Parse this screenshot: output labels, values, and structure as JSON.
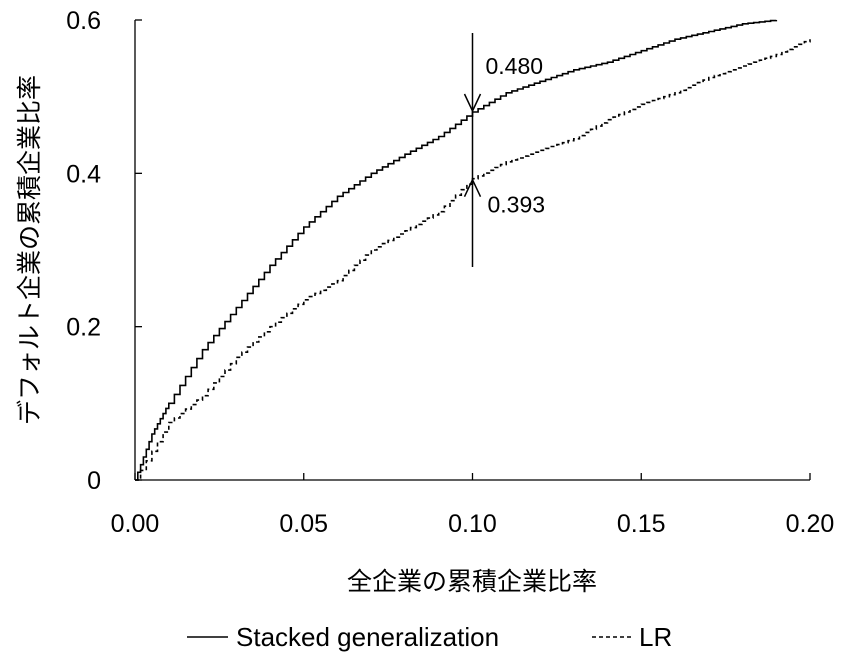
{
  "chart_data": {
    "type": "line",
    "xlabel": "全企業の累積企業比率",
    "ylabel": "デフォルト企業の累積企業比率",
    "xlim": [
      0,
      0.2
    ],
    "ylim": [
      0,
      0.6
    ],
    "x_ticks": [
      "0.00",
      "0.05",
      "0.10",
      "0.15",
      "0.20"
    ],
    "y_ticks": [
      "0",
      "0.2",
      "0.4",
      "0.6"
    ],
    "grid": false,
    "legend_position": "bottom",
    "series": [
      {
        "name": "Stacked generalization",
        "style": "solid",
        "color": "#000000",
        "x": [
          0,
          0.005,
          0.01,
          0.02,
          0.03,
          0.04,
          0.05,
          0.06,
          0.07,
          0.08,
          0.09,
          0.1,
          0.11,
          0.12,
          0.13,
          0.14,
          0.15,
          0.16,
          0.17,
          0.18,
          0.19
        ],
        "y": [
          0,
          0.06,
          0.1,
          0.17,
          0.225,
          0.28,
          0.33,
          0.37,
          0.4,
          0.425,
          0.448,
          0.48,
          0.505,
          0.52,
          0.535,
          0.545,
          0.56,
          0.575,
          0.585,
          0.595,
          0.6
        ]
      },
      {
        "name": "LR",
        "style": "dashed",
        "color": "#000000",
        "x": [
          0,
          0.01,
          0.02,
          0.03,
          0.04,
          0.05,
          0.06,
          0.07,
          0.08,
          0.09,
          0.1,
          0.11,
          0.12,
          0.13,
          0.14,
          0.15,
          0.16,
          0.17,
          0.18,
          0.19,
          0.2
        ],
        "y": [
          0,
          0.075,
          0.11,
          0.16,
          0.2,
          0.235,
          0.26,
          0.3,
          0.325,
          0.35,
          0.393,
          0.415,
          0.43,
          0.445,
          0.47,
          0.49,
          0.505,
          0.525,
          0.54,
          0.555,
          0.575
        ]
      }
    ],
    "annotations": [
      {
        "text": "0.480",
        "x": 0.1,
        "y": 0.48,
        "arrow": "down"
      },
      {
        "text": "0.393",
        "x": 0.1,
        "y": 0.393,
        "arrow": "up"
      }
    ]
  }
}
